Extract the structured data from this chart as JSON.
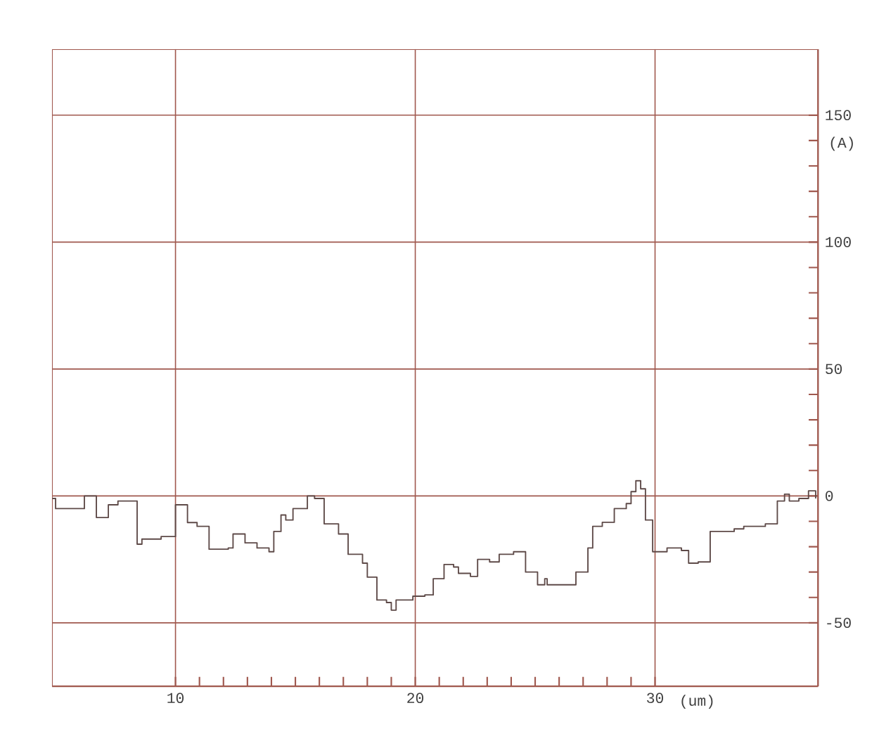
{
  "chart_data": {
    "type": "step",
    "xlabel": "(um)",
    "ylabel": "(A)",
    "x": [
      4.86,
      5.0,
      5.94,
      6.2,
      6.7,
      7.2,
      7.6,
      8.4,
      8.6,
      9.4,
      10.0,
      10.5,
      10.9,
      11.4,
      12.2,
      12.4,
      12.9,
      13.4,
      13.9,
      14.1,
      14.4,
      14.6,
      14.9,
      15.5,
      15.8,
      16.2,
      16.8,
      17.2,
      17.8,
      18.0,
      18.4,
      18.8,
      19.0,
      19.2,
      19.9,
      20.4,
      20.75,
      21.2,
      21.6,
      21.8,
      22.3,
      22.6,
      23.1,
      23.5,
      24.1,
      24.6,
      25.1,
      25.4,
      25.5,
      26.6,
      26.7,
      27.2,
      27.4,
      27.8,
      28.3,
      28.8,
      29.0,
      29.2,
      29.4,
      29.6,
      29.9,
      30.5,
      31.1,
      31.4,
      31.8,
      32.3,
      33.3,
      33.7,
      34.6,
      35.1,
      35.4,
      35.6,
      36.0,
      36.4,
      36.7
    ],
    "series": [
      {
        "color": "#5e4a48",
        "values": [
          -1,
          -5,
          -5,
          0,
          -8.5,
          -3.5,
          -2,
          -19,
          -17,
          -16,
          -3.5,
          -10.5,
          -12,
          -21,
          -20.5,
          -15,
          -18.5,
          -20.5,
          -22,
          -14,
          -7.5,
          -9.5,
          -5,
          0,
          -1,
          -11,
          -15,
          -23,
          -26.5,
          -32,
          -41,
          -42,
          -45,
          -41,
          -39.5,
          -39,
          -32.6,
          -27,
          -28,
          -30.5,
          -31.7,
          -25,
          -26,
          -23,
          -22,
          -30,
          -35,
          -32.6,
          -35,
          -35,
          -30,
          -20.5,
          -12,
          -10.4,
          -5,
          -3,
          1.7,
          6,
          2.8,
          -9.5,
          -22,
          -20.5,
          -21.5,
          -26.5,
          -26,
          -14,
          -13,
          -12,
          -11,
          -2,
          0.7,
          -2,
          -1,
          2,
          -1
        ]
      }
    ],
    "xlim": [
      4.85,
      36.8
    ],
    "ylim": [
      -75,
      176
    ],
    "xticks": [
      10,
      20,
      30
    ],
    "yticks": [
      -50,
      0,
      50,
      100,
      150
    ],
    "grid": true,
    "marker": "none",
    "line_style": "solid"
  }
}
